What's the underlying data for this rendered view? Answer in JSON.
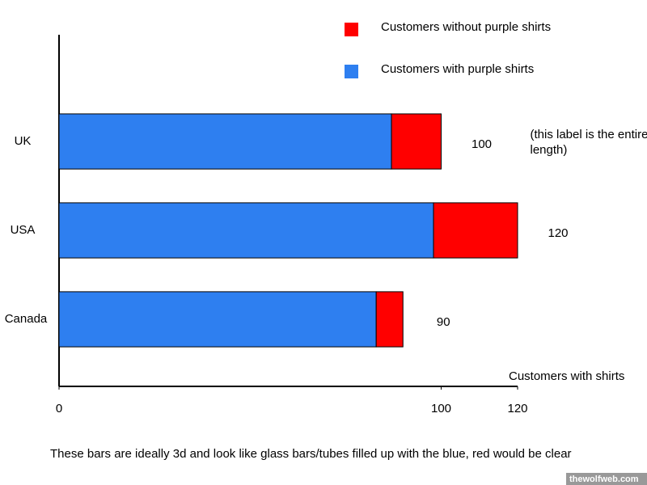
{
  "chart_data": {
    "type": "stacked-barh",
    "categories": [
      "UK",
      "USA",
      "Canada"
    ],
    "series": [
      {
        "name": "Customers with purple shirts",
        "color": "#2e7ff0",
        "values": [
          87,
          98,
          83
        ]
      },
      {
        "name": "Customers without purple shirts",
        "color": "#ff0000",
        "values": [
          13,
          22,
          7
        ]
      }
    ],
    "totals": [
      100,
      120,
      90
    ],
    "annotation": "(this label is the entire bar length)",
    "xlabel": "Customers with shirts",
    "xlim": [
      0,
      120
    ],
    "xticks": [
      0,
      100,
      120
    ],
    "footnote": "These bars are ideally 3d and look like glass bars/tubes filled up with the blue, red would be clear",
    "watermark": "thewolfweb.com"
  }
}
